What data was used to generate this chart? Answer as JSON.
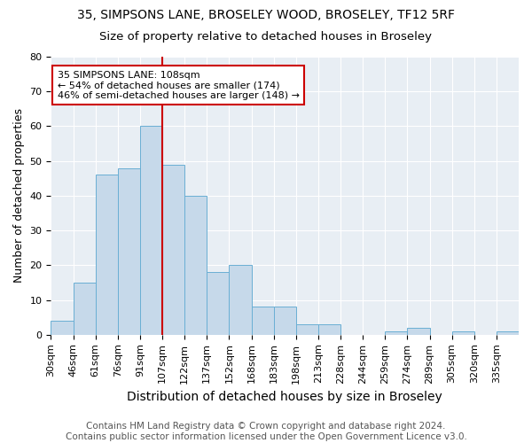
{
  "title1": "35, SIMPSONS LANE, BROSELEY WOOD, BROSELEY, TF12 5RF",
  "title2": "Size of property relative to detached houses in Broseley",
  "xlabel": "Distribution of detached houses by size in Broseley",
  "ylabel": "Number of detached properties",
  "footnote": "Contains HM Land Registry data © Crown copyright and database right 2024.\nContains public sector information licensed under the Open Government Licence v3.0.",
  "bin_labels": [
    "30sqm",
    "46sqm",
    "61sqm",
    "76sqm",
    "91sqm",
    "107sqm",
    "122sqm",
    "137sqm",
    "152sqm",
    "168sqm",
    "183sqm",
    "198sqm",
    "213sqm",
    "228sqm",
    "244sqm",
    "259sqm",
    "274sqm",
    "289sqm",
    "305sqm",
    "320sqm",
    "335sqm"
  ],
  "bar_heights": [
    4,
    15,
    46,
    48,
    60,
    49,
    40,
    18,
    20,
    8,
    8,
    3,
    3,
    0,
    0,
    1,
    2,
    0,
    1,
    0,
    1
  ],
  "bar_color": "#c6d9ea",
  "bar_edge_color": "#6aafd4",
  "vline_x_index": 5,
  "vline_color": "#cc0000",
  "annotation_text": "35 SIMPSONS LANE: 108sqm\n← 54% of detached houses are smaller (174)\n46% of semi-detached houses are larger (148) →",
  "annotation_box_color": "#ffffff",
  "annotation_box_edge": "#cc0000",
  "ylim": [
    0,
    80
  ],
  "yticks": [
    0,
    10,
    20,
    30,
    40,
    50,
    60,
    70,
    80
  ],
  "title1_fontsize": 10,
  "title2_fontsize": 9.5,
  "ylabel_fontsize": 9,
  "xlabel_fontsize": 10,
  "tick_fontsize": 8,
  "annotation_fontsize": 8,
  "footnote_fontsize": 7.5,
  "plot_bg_color": "#e8eef4"
}
